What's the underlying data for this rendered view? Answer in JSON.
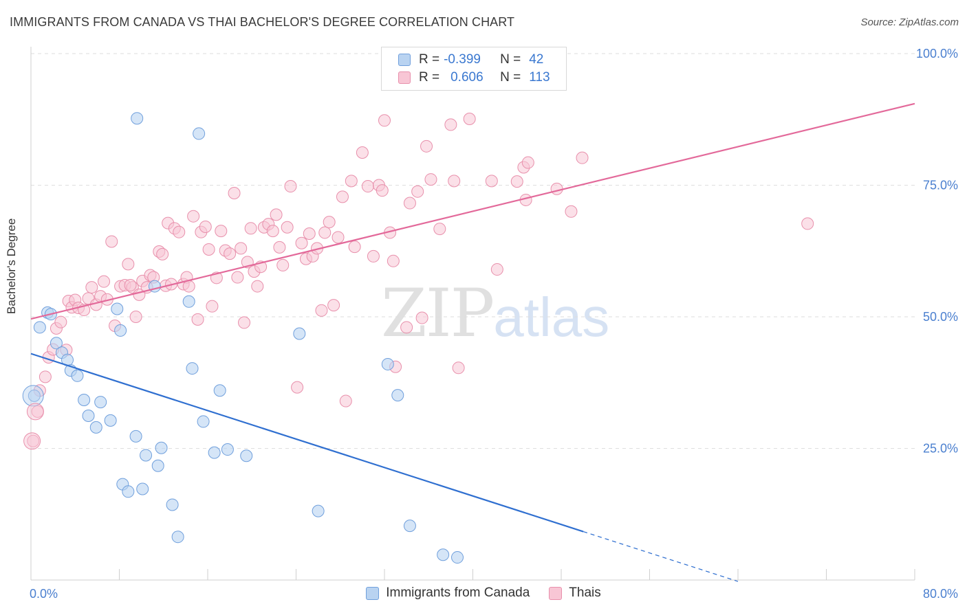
{
  "title": "IMMIGRANTS FROM CANADA VS THAI BACHELOR'S DEGREE CORRELATION CHART",
  "source": "Source: ZipAtlas.com",
  "watermark": {
    "zip": "ZIP",
    "atlas": "atlas"
  },
  "legend": {
    "rows": [
      {
        "r_label": "R =",
        "r_value": "-0.399",
        "n_label": "N =",
        "n_value": "42",
        "color": "#a9c8ef"
      },
      {
        "r_label": "R =",
        "r_value": "0.606",
        "n_label": "N =",
        "n_value": "113",
        "color": "#f6b8cb"
      }
    ]
  },
  "bottom_legend": [
    {
      "label": "Immigrants from Canada",
      "color": "#a9c8ef"
    },
    {
      "label": "Thais",
      "color": "#f6b8cb"
    }
  ],
  "colors": {
    "blue_fill": "#b9d3f1",
    "blue_stroke": "#6f9fdc",
    "blue_line": "#2f6fd0",
    "pink_fill": "#f8c6d5",
    "pink_stroke": "#e88fab",
    "pink_line": "#e3699a",
    "grid": "#dedede",
    "tick_text": "#4a7fcf"
  },
  "chart_data": {
    "type": "scatter",
    "title": "IMMIGRANTS FROM CANADA VS THAI BACHELOR'S DEGREE CORRELATION CHART",
    "xlabel": "",
    "ylabel": "Bachelor's Degree",
    "xlim": [
      0,
      80
    ],
    "ylim": [
      0,
      100
    ],
    "x_tick_labels": [
      "0.0%",
      "80.0%"
    ],
    "y_ticks": [
      25,
      50,
      75,
      100
    ],
    "y_tick_labels": [
      "25.0%",
      "50.0%",
      "75.0%",
      "100.0%"
    ],
    "grid": true,
    "legend_position": "top-center",
    "series": [
      {
        "name": "Immigrants from Canada",
        "r": -0.399,
        "n": 42,
        "trend": {
          "x0": 0,
          "y0": 43.0,
          "x1": 50,
          "y1": 9.2,
          "dash_to_x": 64
        },
        "points": [
          [
            0.3,
            35.0
          ],
          [
            0.8,
            48.0
          ],
          [
            1.5,
            50.8
          ],
          [
            1.8,
            50.5
          ],
          [
            2.3,
            45.0
          ],
          [
            2.8,
            43.2
          ],
          [
            3.3,
            41.8
          ],
          [
            3.6,
            39.8
          ],
          [
            4.2,
            38.8
          ],
          [
            4.8,
            34.2
          ],
          [
            5.2,
            31.2
          ],
          [
            5.9,
            29.0
          ],
          [
            6.3,
            33.8
          ],
          [
            7.2,
            30.3
          ],
          [
            7.8,
            51.5
          ],
          [
            8.1,
            47.4
          ],
          [
            9.5,
            27.3
          ],
          [
            8.3,
            18.2
          ],
          [
            8.8,
            16.8
          ],
          [
            10.4,
            23.7
          ],
          [
            11.8,
            25.1
          ],
          [
            11.5,
            21.7
          ],
          [
            12.8,
            14.3
          ],
          [
            13.3,
            8.2
          ],
          [
            14.3,
            52.9
          ],
          [
            14.6,
            40.2
          ],
          [
            15.6,
            30.1
          ],
          [
            16.6,
            24.2
          ],
          [
            17.1,
            36.0
          ],
          [
            17.8,
            24.8
          ],
          [
            19.5,
            23.6
          ],
          [
            9.6,
            87.7
          ],
          [
            15.2,
            84.8
          ],
          [
            11.2,
            55.8
          ],
          [
            24.3,
            46.8
          ],
          [
            26.0,
            13.1
          ],
          [
            32.3,
            41.0
          ],
          [
            33.2,
            35.1
          ],
          [
            34.3,
            10.3
          ],
          [
            37.3,
            4.8
          ],
          [
            38.6,
            4.3
          ],
          [
            10.1,
            17.3
          ]
        ]
      },
      {
        "name": "Thais",
        "r": 0.606,
        "n": 113,
        "trend": {
          "x0": 0,
          "y0": 49.6,
          "x1": 80,
          "y1": 90.5
        },
        "points": [
          [
            0.2,
            26.4
          ],
          [
            0.6,
            32.0
          ],
          [
            0.8,
            36.0
          ],
          [
            1.3,
            38.6
          ],
          [
            1.6,
            42.3
          ],
          [
            2.0,
            43.8
          ],
          [
            2.3,
            47.8
          ],
          [
            2.7,
            49.0
          ],
          [
            3.2,
            43.7
          ],
          [
            3.4,
            53.0
          ],
          [
            3.7,
            51.8
          ],
          [
            4.0,
            53.2
          ],
          [
            4.3,
            51.7
          ],
          [
            4.8,
            51.3
          ],
          [
            5.2,
            53.5
          ],
          [
            5.5,
            55.6
          ],
          [
            5.9,
            52.3
          ],
          [
            6.3,
            53.9
          ],
          [
            6.6,
            56.7
          ],
          [
            6.9,
            53.3
          ],
          [
            7.3,
            64.3
          ],
          [
            7.6,
            48.3
          ],
          [
            8.1,
            55.8
          ],
          [
            8.5,
            56.0
          ],
          [
            8.8,
            60.0
          ],
          [
            9.2,
            55.6
          ],
          [
            9.5,
            50.0
          ],
          [
            9.8,
            54.2
          ],
          [
            10.1,
            56.8
          ],
          [
            10.5,
            55.6
          ],
          [
            10.8,
            57.9
          ],
          [
            11.1,
            57.5
          ],
          [
            11.6,
            62.4
          ],
          [
            11.9,
            61.9
          ],
          [
            12.2,
            55.9
          ],
          [
            12.4,
            67.8
          ],
          [
            12.7,
            56.2
          ],
          [
            13.0,
            66.8
          ],
          [
            13.4,
            66.1
          ],
          [
            13.8,
            56.2
          ],
          [
            14.1,
            57.5
          ],
          [
            14.3,
            55.8
          ],
          [
            14.7,
            69.1
          ],
          [
            15.1,
            49.5
          ],
          [
            15.4,
            66.1
          ],
          [
            15.8,
            67.1
          ],
          [
            16.1,
            62.8
          ],
          [
            16.4,
            52.0
          ],
          [
            16.8,
            57.4
          ],
          [
            17.2,
            66.3
          ],
          [
            17.6,
            62.6
          ],
          [
            18.0,
            62.0
          ],
          [
            18.4,
            73.5
          ],
          [
            18.7,
            57.5
          ],
          [
            19.0,
            63.0
          ],
          [
            19.3,
            48.9
          ],
          [
            19.6,
            60.4
          ],
          [
            19.9,
            66.8
          ],
          [
            20.2,
            58.6
          ],
          [
            20.5,
            55.8
          ],
          [
            20.8,
            59.5
          ],
          [
            21.1,
            67.0
          ],
          [
            21.5,
            67.6
          ],
          [
            21.9,
            66.3
          ],
          [
            22.2,
            69.4
          ],
          [
            22.5,
            63.2
          ],
          [
            22.8,
            59.8
          ],
          [
            23.2,
            67.0
          ],
          [
            23.5,
            74.8
          ],
          [
            24.1,
            36.6
          ],
          [
            24.5,
            64.0
          ],
          [
            24.9,
            61.0
          ],
          [
            25.2,
            65.8
          ],
          [
            25.5,
            61.5
          ],
          [
            25.9,
            63.0
          ],
          [
            26.3,
            51.2
          ],
          [
            26.6,
            66.0
          ],
          [
            27.0,
            68.0
          ],
          [
            27.4,
            52.2
          ],
          [
            27.8,
            65.1
          ],
          [
            28.2,
            72.8
          ],
          [
            28.5,
            34.0
          ],
          [
            29.0,
            75.8
          ],
          [
            29.3,
            63.3
          ],
          [
            30.0,
            81.2
          ],
          [
            30.5,
            74.8
          ],
          [
            31.0,
            61.5
          ],
          [
            31.5,
            75.0
          ],
          [
            31.8,
            74.0
          ],
          [
            32.0,
            87.3
          ],
          [
            32.5,
            66.0
          ],
          [
            32.8,
            60.6
          ],
          [
            33.0,
            40.5
          ],
          [
            34.0,
            48.0
          ],
          [
            34.3,
            71.6
          ],
          [
            35.0,
            73.8
          ],
          [
            35.4,
            49.8
          ],
          [
            35.8,
            82.4
          ],
          [
            36.2,
            76.1
          ],
          [
            37.0,
            66.7
          ],
          [
            38.0,
            86.5
          ],
          [
            38.3,
            75.8
          ],
          [
            38.7,
            40.3
          ],
          [
            39.7,
            87.6
          ],
          [
            41.7,
            75.8
          ],
          [
            42.2,
            59.0
          ],
          [
            44.0,
            75.7
          ],
          [
            44.6,
            78.4
          ],
          [
            45.0,
            79.3
          ],
          [
            44.8,
            72.2
          ],
          [
            47.6,
            74.3
          ],
          [
            48.9,
            70.0
          ],
          [
            49.9,
            80.2
          ],
          [
            70.3,
            67.7
          ],
          [
            9.0,
            56.0
          ]
        ]
      }
    ]
  }
}
